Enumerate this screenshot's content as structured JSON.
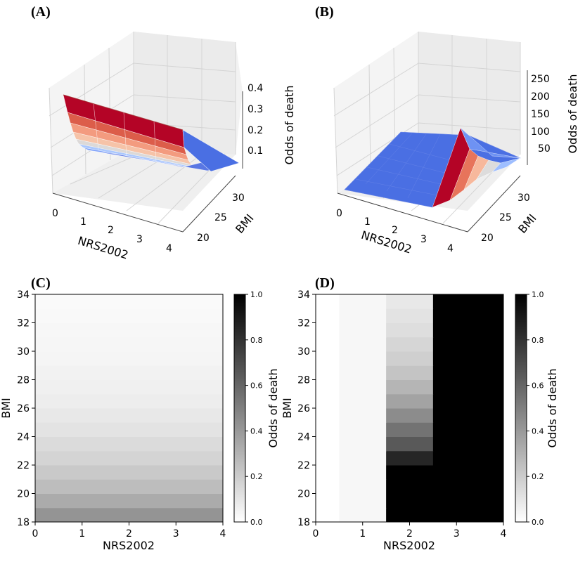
{
  "panels": {
    "A": "(A)",
    "B": "(B)",
    "C": "(C)",
    "D": "(D)"
  },
  "colors": {
    "surface_low": "#4a6fe3",
    "surface_high": "#b40426",
    "grid": "#d4d4d4",
    "pane": "#f2f2f2"
  },
  "chart_data": [
    {
      "panel": "A",
      "type": "surface3d",
      "colormap": "coolwarm",
      "xlabel": "NRS2002",
      "ylabel": "BMI",
      "zlabel": "Odds of death",
      "xticks": [
        "0",
        "1",
        "2",
        "3",
        "4"
      ],
      "yticks": [
        "20",
        "25",
        "30"
      ],
      "zticks": [
        "0.1",
        "0.2",
        "0.3",
        "0.4"
      ],
      "xlim": [
        0,
        4
      ],
      "ylim": [
        18,
        34
      ],
      "zlim": [
        0,
        0.45
      ],
      "description_values": {
        "odds_at_bmi18": 0.42,
        "odds_at_bmi34": 0.03
      }
    },
    {
      "panel": "B",
      "type": "surface3d",
      "colormap": "coolwarm",
      "xlabel": "NRS2002",
      "ylabel": "BMI",
      "zlabel": "Odds of death",
      "xticks": [
        "0",
        "1",
        "2",
        "3",
        "4"
      ],
      "yticks": [
        "20",
        "25",
        "30"
      ],
      "zticks": [
        "50",
        "100",
        "150",
        "200",
        "250"
      ],
      "xlim": [
        0,
        4
      ],
      "ylim": [
        18,
        34
      ],
      "zlim": [
        0,
        260
      ],
      "description_values": {
        "peak_nrs": 3,
        "peak_bmi": 18,
        "peak_odds": 250
      }
    },
    {
      "panel": "C",
      "type": "heatmap",
      "colormap": "gray_r",
      "xlabel": "NRS2002",
      "ylabel": "BMI",
      "colorbar_label": "Odds of death",
      "xticks": [
        "0",
        "1",
        "2",
        "3",
        "4"
      ],
      "yticks": [
        "18",
        "20",
        "22",
        "24",
        "26",
        "28",
        "30",
        "32",
        "34"
      ],
      "cbar_ticks": [
        "0.0",
        "0.2",
        "0.4",
        "0.6",
        "0.8",
        "1.0"
      ],
      "xlim": [
        0,
        4
      ],
      "ylim": [
        18,
        34
      ],
      "clim": [
        0,
        1
      ],
      "bmi_rows": [
        18,
        19,
        20,
        21,
        22,
        23,
        24,
        25,
        26,
        27,
        28,
        29,
        30,
        31,
        32,
        33
      ],
      "values_by_bmi": [
        0.42,
        0.33,
        0.26,
        0.21,
        0.17,
        0.14,
        0.11,
        0.09,
        0.07,
        0.06,
        0.05,
        0.04,
        0.035,
        0.03,
        0.025,
        0.02
      ]
    },
    {
      "panel": "D",
      "type": "heatmap",
      "colormap": "gray_r",
      "xlabel": "NRS2002",
      "ylabel": "BMI",
      "colorbar_label": "Odds of death",
      "xticks": [
        "0",
        "1",
        "2",
        "3",
        "4"
      ],
      "yticks": [
        "18",
        "20",
        "22",
        "24",
        "26",
        "28",
        "30",
        "32",
        "34"
      ],
      "cbar_ticks": [
        "0.0",
        "0.2",
        "0.4",
        "0.6",
        "0.8",
        "1.0"
      ],
      "xlim": [
        0,
        4
      ],
      "ylim": [
        18,
        34
      ],
      "clim": [
        0,
        1
      ],
      "nrs_columns": [
        0,
        1,
        2,
        3,
        4
      ],
      "bmi_rows": [
        18,
        19,
        20,
        21,
        22,
        23,
        24,
        25,
        26,
        27,
        28,
        29,
        30,
        31,
        32,
        33
      ],
      "values": [
        [
          0.0,
          0.03,
          1.0,
          1.0,
          1.0
        ],
        [
          0.0,
          0.03,
          1.0,
          1.0,
          1.0
        ],
        [
          0.0,
          0.03,
          1.0,
          1.0,
          1.0
        ],
        [
          0.0,
          0.03,
          1.0,
          1.0,
          1.0
        ],
        [
          0.0,
          0.03,
          0.85,
          1.0,
          1.0
        ],
        [
          0.0,
          0.03,
          0.65,
          1.0,
          1.0
        ],
        [
          0.0,
          0.03,
          0.55,
          1.0,
          1.0
        ],
        [
          0.0,
          0.03,
          0.45,
          1.0,
          1.0
        ],
        [
          0.0,
          0.03,
          0.36,
          1.0,
          1.0
        ],
        [
          0.0,
          0.03,
          0.29,
          1.0,
          1.0
        ],
        [
          0.0,
          0.03,
          0.23,
          1.0,
          1.0
        ],
        [
          0.0,
          0.03,
          0.19,
          1.0,
          1.0
        ],
        [
          0.0,
          0.03,
          0.16,
          1.0,
          1.0
        ],
        [
          0.0,
          0.03,
          0.13,
          1.0,
          1.0
        ],
        [
          0.0,
          0.03,
          0.11,
          1.0,
          1.0
        ],
        [
          0.0,
          0.03,
          0.09,
          1.0,
          1.0
        ]
      ]
    }
  ]
}
